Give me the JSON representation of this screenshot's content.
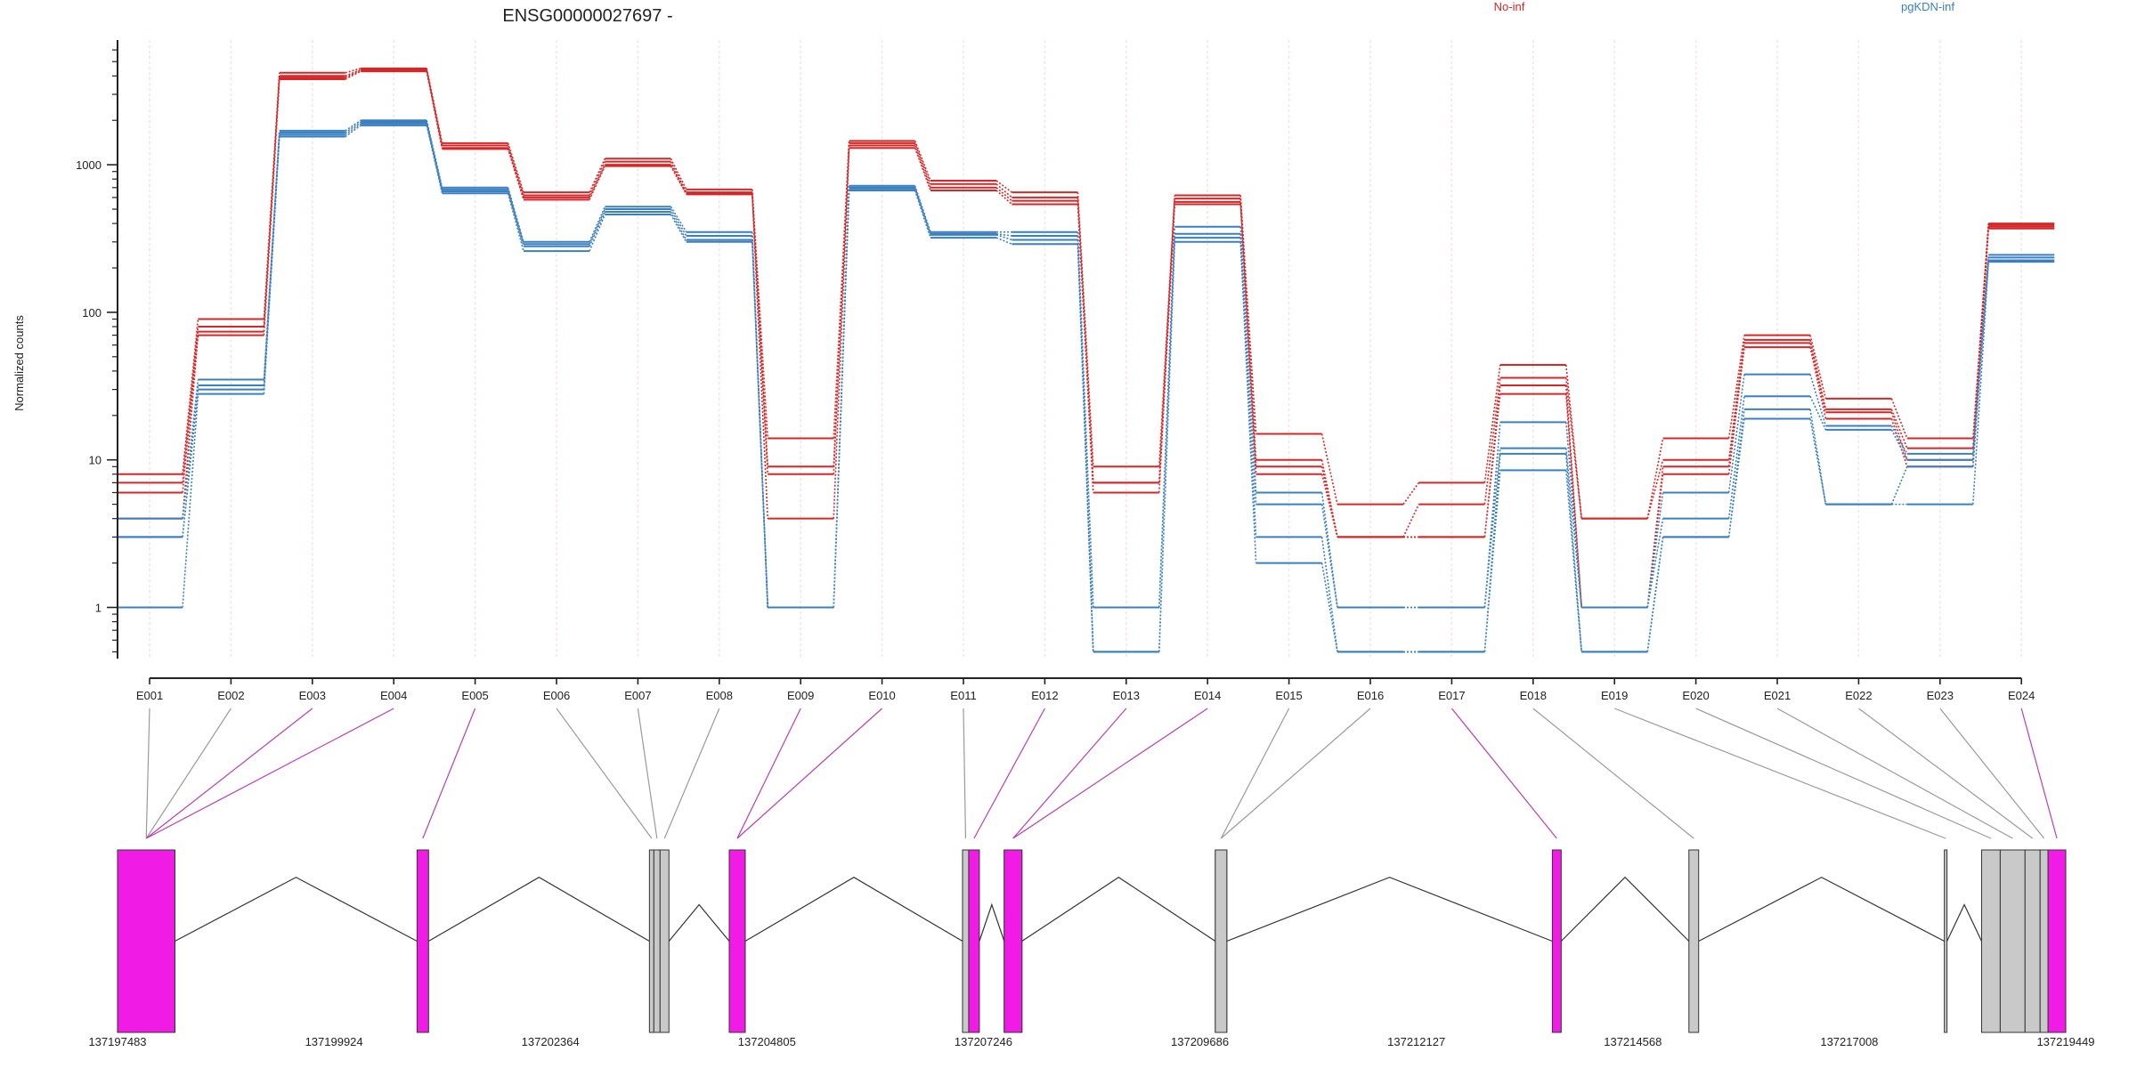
{
  "colors": {
    "no_inf": "#d62728",
    "pgkdn_inf": "#3a7fc0",
    "exon_sig": "#f01ce6",
    "exon_nonsig": "#c9c9c9",
    "connector_sig": "#b640b0",
    "connector_nonsig": "#9a9a9a",
    "axis": "#222222",
    "gridline": "#f3e3e3"
  },
  "chart_data": {
    "type": "line",
    "title": "ENSG00000027697 -",
    "legend": [
      {
        "name": "No-inf",
        "color": "#d62728"
      },
      {
        "name": "pgKDN-inf",
        "color": "#3a7fc0"
      }
    ],
    "legend_position": "top-right",
    "ylabel": "Normalized counts",
    "y_scale": "log",
    "ylim": [
      0.45,
      7000
    ],
    "y_ticks": [
      1,
      10,
      100,
      1000
    ],
    "y_tick_labels": [
      "1",
      "10",
      "100",
      "1000"
    ],
    "grid": true,
    "x": [
      "E001",
      "E002",
      "E003",
      "E004",
      "E005",
      "E006",
      "E007",
      "E008",
      "E009",
      "E010",
      "E011",
      "E012",
      "E013",
      "E014",
      "E015",
      "E016",
      "E017",
      "E018",
      "E019",
      "E020",
      "E021",
      "E022",
      "E023",
      "E024"
    ],
    "series": [
      {
        "group": "No-inf",
        "values": [
          8,
          90,
          4200,
          4500,
          1400,
          650,
          1100,
          680,
          14,
          1450,
          780,
          650,
          9,
          620,
          15,
          5,
          7,
          44,
          4,
          14,
          70,
          26,
          14,
          400
        ]
      },
      {
        "group": "No-inf",
        "values": [
          7,
          80,
          4000,
          4400,
          1350,
          620,
          1050,
          650,
          9,
          1400,
          740,
          600,
          7,
          590,
          10,
          3,
          5,
          36,
          4,
          10,
          65,
          22,
          12,
          390
        ]
      },
      {
        "group": "No-inf",
        "values": [
          6,
          74,
          3900,
          4350,
          1300,
          600,
          1000,
          640,
          8,
          1350,
          700,
          570,
          7,
          560,
          9,
          3,
          3,
          32,
          1,
          9,
          62,
          21,
          10,
          380
        ]
      },
      {
        "group": "No-inf",
        "values": [
          4,
          70,
          3800,
          4300,
          1280,
          580,
          980,
          630,
          4,
          1300,
          670,
          540,
          6,
          540,
          8,
          3,
          3,
          28,
          1,
          8,
          58,
          19,
          9,
          370
        ]
      },
      {
        "group": "pgKDN-inf",
        "values": [
          4,
          35,
          1700,
          2000,
          700,
          300,
          520,
          350,
          1,
          720,
          350,
          350,
          1,
          380,
          6,
          1,
          1,
          18,
          1,
          6,
          38,
          17,
          11,
          245
        ]
      },
      {
        "group": "pgKDN-inf",
        "values": [
          3,
          32,
          1650,
          1950,
          680,
          290,
          500,
          330,
          1,
          700,
          340,
          330,
          1,
          340,
          5,
          1,
          1,
          12,
          1,
          4,
          27,
          16,
          10,
          235
        ]
      },
      {
        "group": "pgKDN-inf",
        "values": [
          3,
          30,
          1600,
          1900,
          660,
          280,
          480,
          310,
          1,
          690,
          335,
          310,
          0.5,
          320,
          3,
          0.5,
          0.5,
          11,
          0.5,
          3,
          22,
          5,
          9,
          225
        ]
      },
      {
        "group": "pgKDN-inf",
        "values": [
          1,
          28,
          1550,
          1850,
          640,
          260,
          460,
          300,
          1,
          670,
          320,
          290,
          0.5,
          300,
          2,
          0.5,
          0.5,
          8.5,
          0.5,
          3,
          19,
          5,
          5,
          220
        ]
      }
    ],
    "exon_significant": [
      false,
      false,
      true,
      true,
      true,
      false,
      false,
      false,
      true,
      true,
      false,
      true,
      true,
      true,
      false,
      false,
      true,
      false,
      false,
      false,
      false,
      false,
      false,
      true
    ],
    "genomic_ticks": [
      "137197483",
      "137199924",
      "137202364",
      "137204805",
      "137207246",
      "137209686",
      "137212127",
      "137214568",
      "137217008",
      "137219449"
    ],
    "genomic_range": [
      137197483,
      137219449
    ],
    "exons_genomic": [
      [
        137197483,
        137198130
      ],
      [
        137197483,
        137198130
      ],
      [
        137197483,
        137198130
      ],
      [
        137197483,
        137198130
      ],
      [
        137200860,
        137200990
      ],
      [
        137203480,
        137203530
      ],
      [
        137203530,
        137203600
      ],
      [
        137203600,
        137203700
      ],
      [
        137204380,
        137204560
      ],
      [
        137204380,
        137204560
      ],
      [
        137207010,
        137207080
      ],
      [
        137207080,
        137207200
      ],
      [
        137207480,
        137207680
      ],
      [
        137207480,
        137207680
      ],
      [
        137209860,
        137209990
      ],
      [
        137209860,
        137209990
      ],
      [
        137213660,
        137213760
      ],
      [
        137215200,
        137215310
      ],
      [
        137218080,
        137218110
      ],
      [
        137218500,
        137218710
      ],
      [
        137218710,
        137218990
      ],
      [
        137218990,
        137219160
      ],
      [
        137219160,
        137219249
      ],
      [
        137219249,
        137219449
      ]
    ]
  }
}
